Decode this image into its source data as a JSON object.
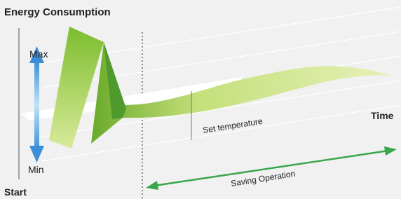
{
  "header": {
    "title": "Energy Consumption"
  },
  "labels": {
    "max": "Max",
    "min": "Min",
    "start": "Start",
    "set_temperature": "Set temperature",
    "time": "Time",
    "saving_operation": "Saving Operation"
  }
}
